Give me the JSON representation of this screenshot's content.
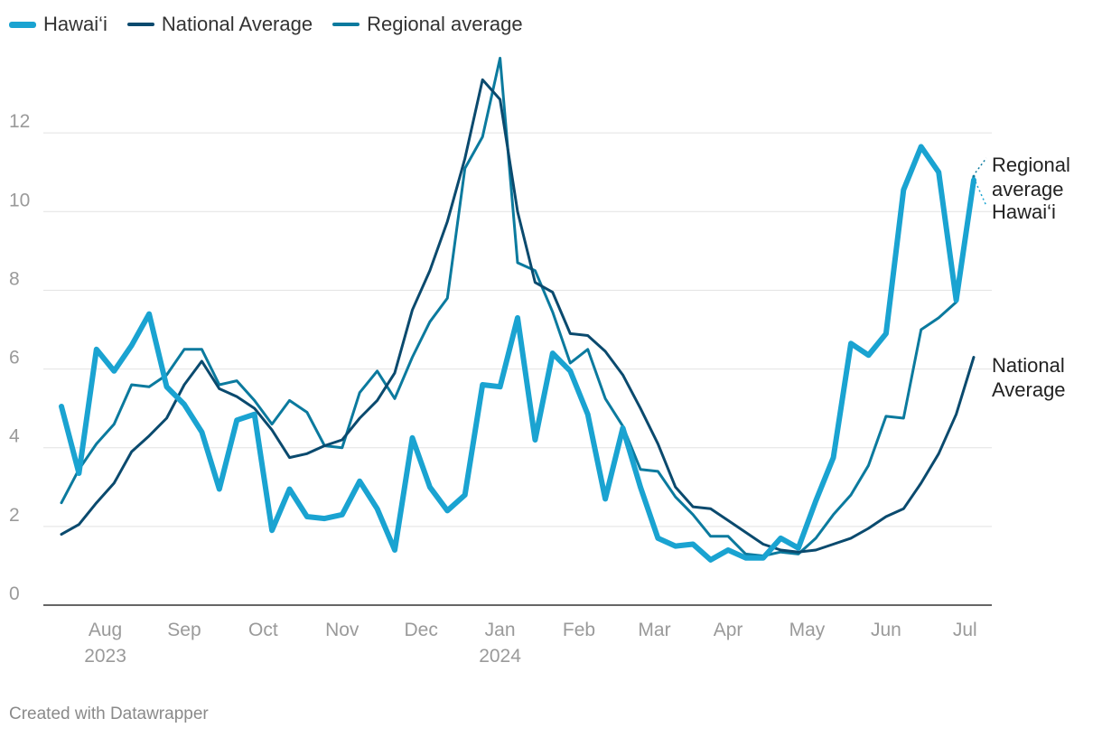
{
  "chart_data": {
    "type": "line",
    "title": "",
    "xlabel": "",
    "ylabel": "",
    "ylim": [
      0,
      14
    ],
    "y_ticks": [
      0,
      2,
      4,
      6,
      8,
      10,
      12
    ],
    "x_month_labels": [
      {
        "label": "Aug",
        "year": "2023",
        "week": 2.5
      },
      {
        "label": "Sep",
        "year": "",
        "week": 7
      },
      {
        "label": "Oct",
        "year": "",
        "week": 11.5
      },
      {
        "label": "Nov",
        "year": "",
        "week": 16
      },
      {
        "label": "Dec",
        "year": "",
        "week": 20.5
      },
      {
        "label": "Jan",
        "year": "2024",
        "week": 25
      },
      {
        "label": "Feb",
        "year": "",
        "week": 29.5
      },
      {
        "label": "Mar",
        "year": "",
        "week": 33.8
      },
      {
        "label": "Apr",
        "year": "",
        "week": 38
      },
      {
        "label": "May",
        "year": "",
        "week": 42.5
      },
      {
        "label": "Jun",
        "year": "",
        "week": 47
      },
      {
        "label": "Jul",
        "year": "",
        "week": 51.5
      }
    ],
    "grid": true,
    "legend_position": "top-left",
    "series": [
      {
        "name": "Hawai‘i",
        "color": "#1aa3d1",
        "values": [
          5.05,
          3.35,
          6.5,
          5.95,
          6.6,
          7.4,
          5.55,
          5.1,
          4.4,
          2.95,
          4.7,
          4.85,
          1.9,
          2.95,
          2.25,
          2.2,
          2.3,
          3.15,
          2.45,
          1.4,
          4.25,
          3.0,
          2.4,
          2.8,
          5.6,
          5.55,
          7.3,
          4.2,
          6.4,
          5.95,
          4.85,
          2.7,
          4.5,
          3.0,
          1.7,
          1.5,
          1.55,
          1.15,
          1.4,
          1.2,
          1.2,
          1.7,
          1.45,
          2.65,
          3.75,
          6.65,
          6.35,
          6.9,
          10.55,
          11.65,
          11.0,
          7.75,
          10.8
        ]
      },
      {
        "name": "National Average",
        "color": "#0a4a6e",
        "values": [
          1.8,
          2.05,
          2.6,
          3.1,
          3.9,
          4.3,
          4.75,
          5.6,
          6.2,
          5.5,
          5.3,
          5.0,
          4.45,
          3.75,
          3.85,
          4.05,
          4.2,
          4.75,
          5.2,
          5.9,
          7.5,
          8.5,
          9.75,
          11.35,
          13.35,
          12.85,
          10.0,
          8.2,
          7.95,
          6.9,
          6.85,
          6.45,
          5.85,
          5.0,
          4.1,
          3.0,
          2.5,
          2.45,
          2.15,
          1.85,
          1.55,
          1.4,
          1.35,
          1.4,
          1.55,
          1.7,
          1.95,
          2.25,
          2.45,
          3.1,
          3.85,
          4.85,
          6.3
        ]
      },
      {
        "name": "Regional average",
        "color": "#0b7a9e",
        "values": [
          2.6,
          3.45,
          4.1,
          4.6,
          5.6,
          5.55,
          5.85,
          6.5,
          6.5,
          5.6,
          5.7,
          5.2,
          4.6,
          5.2,
          4.9,
          4.05,
          4.0,
          5.4,
          5.95,
          5.25,
          6.3,
          7.2,
          7.8,
          11.1,
          11.9,
          13.9,
          8.7,
          8.5,
          7.45,
          6.15,
          6.5,
          5.25,
          4.55,
          3.45,
          3.4,
          2.75,
          2.3,
          1.75,
          1.75,
          1.3,
          1.25,
          1.35,
          1.3,
          1.7,
          2.3,
          2.8,
          3.55,
          4.8,
          4.75,
          7.0,
          7.3,
          7.7,
          10.9
        ]
      }
    ],
    "end_labels": [
      {
        "series": "Regional average",
        "lines": [
          "Regional",
          "average"
        ]
      },
      {
        "series": "Hawai‘i",
        "lines": [
          "Hawai‘i"
        ]
      },
      {
        "series": "National Average",
        "lines": [
          "National",
          "Average"
        ]
      }
    ]
  },
  "footer": {
    "credit": "Created with Datawrapper"
  }
}
